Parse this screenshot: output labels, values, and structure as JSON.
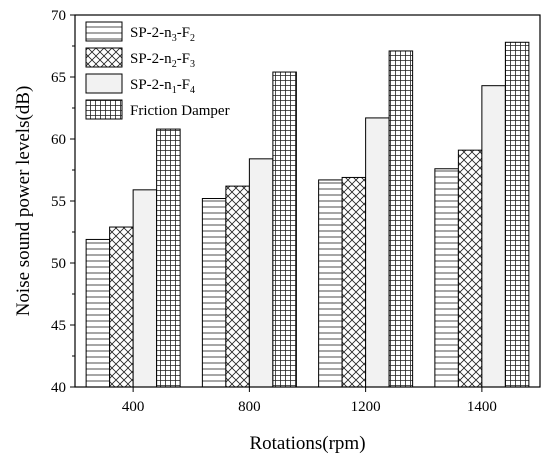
{
  "chart_data": {
    "type": "bar",
    "xlabel": "Rotations(rpm)",
    "ylabel": "Noise sound power levels(dB)",
    "categories": [
      "400",
      "800",
      "1200",
      "1400"
    ],
    "ylim": [
      40,
      70
    ],
    "yticks": [
      "40",
      "45",
      "50",
      "55",
      "60",
      "65",
      "70"
    ],
    "grid": false,
    "legend_position": "top-left",
    "series": [
      {
        "name": "SP-2-n3-F2",
        "legend_parts": [
          "SP-2-n",
          "3",
          "-F",
          "2"
        ],
        "pattern": "horizontal-lines",
        "values": [
          51.9,
          55.2,
          56.7,
          57.6
        ]
      },
      {
        "name": "SP-2-n2-F3",
        "legend_parts": [
          "SP-2-n",
          "2",
          "-F",
          "3"
        ],
        "pattern": "crosshatch-diagonal",
        "values": [
          52.9,
          56.2,
          56.9,
          59.1
        ]
      },
      {
        "name": "SP-2-n1-F4",
        "legend_parts": [
          "SP-2-n",
          "1",
          "-F",
          "4"
        ],
        "pattern": "plain-light-gray",
        "values": [
          55.9,
          58.4,
          61.7,
          64.3
        ]
      },
      {
        "name": "Friction Damper",
        "legend_parts": [
          "Friction Damper"
        ],
        "pattern": "grid",
        "values": [
          60.8,
          65.4,
          67.1,
          67.8
        ]
      }
    ]
  }
}
